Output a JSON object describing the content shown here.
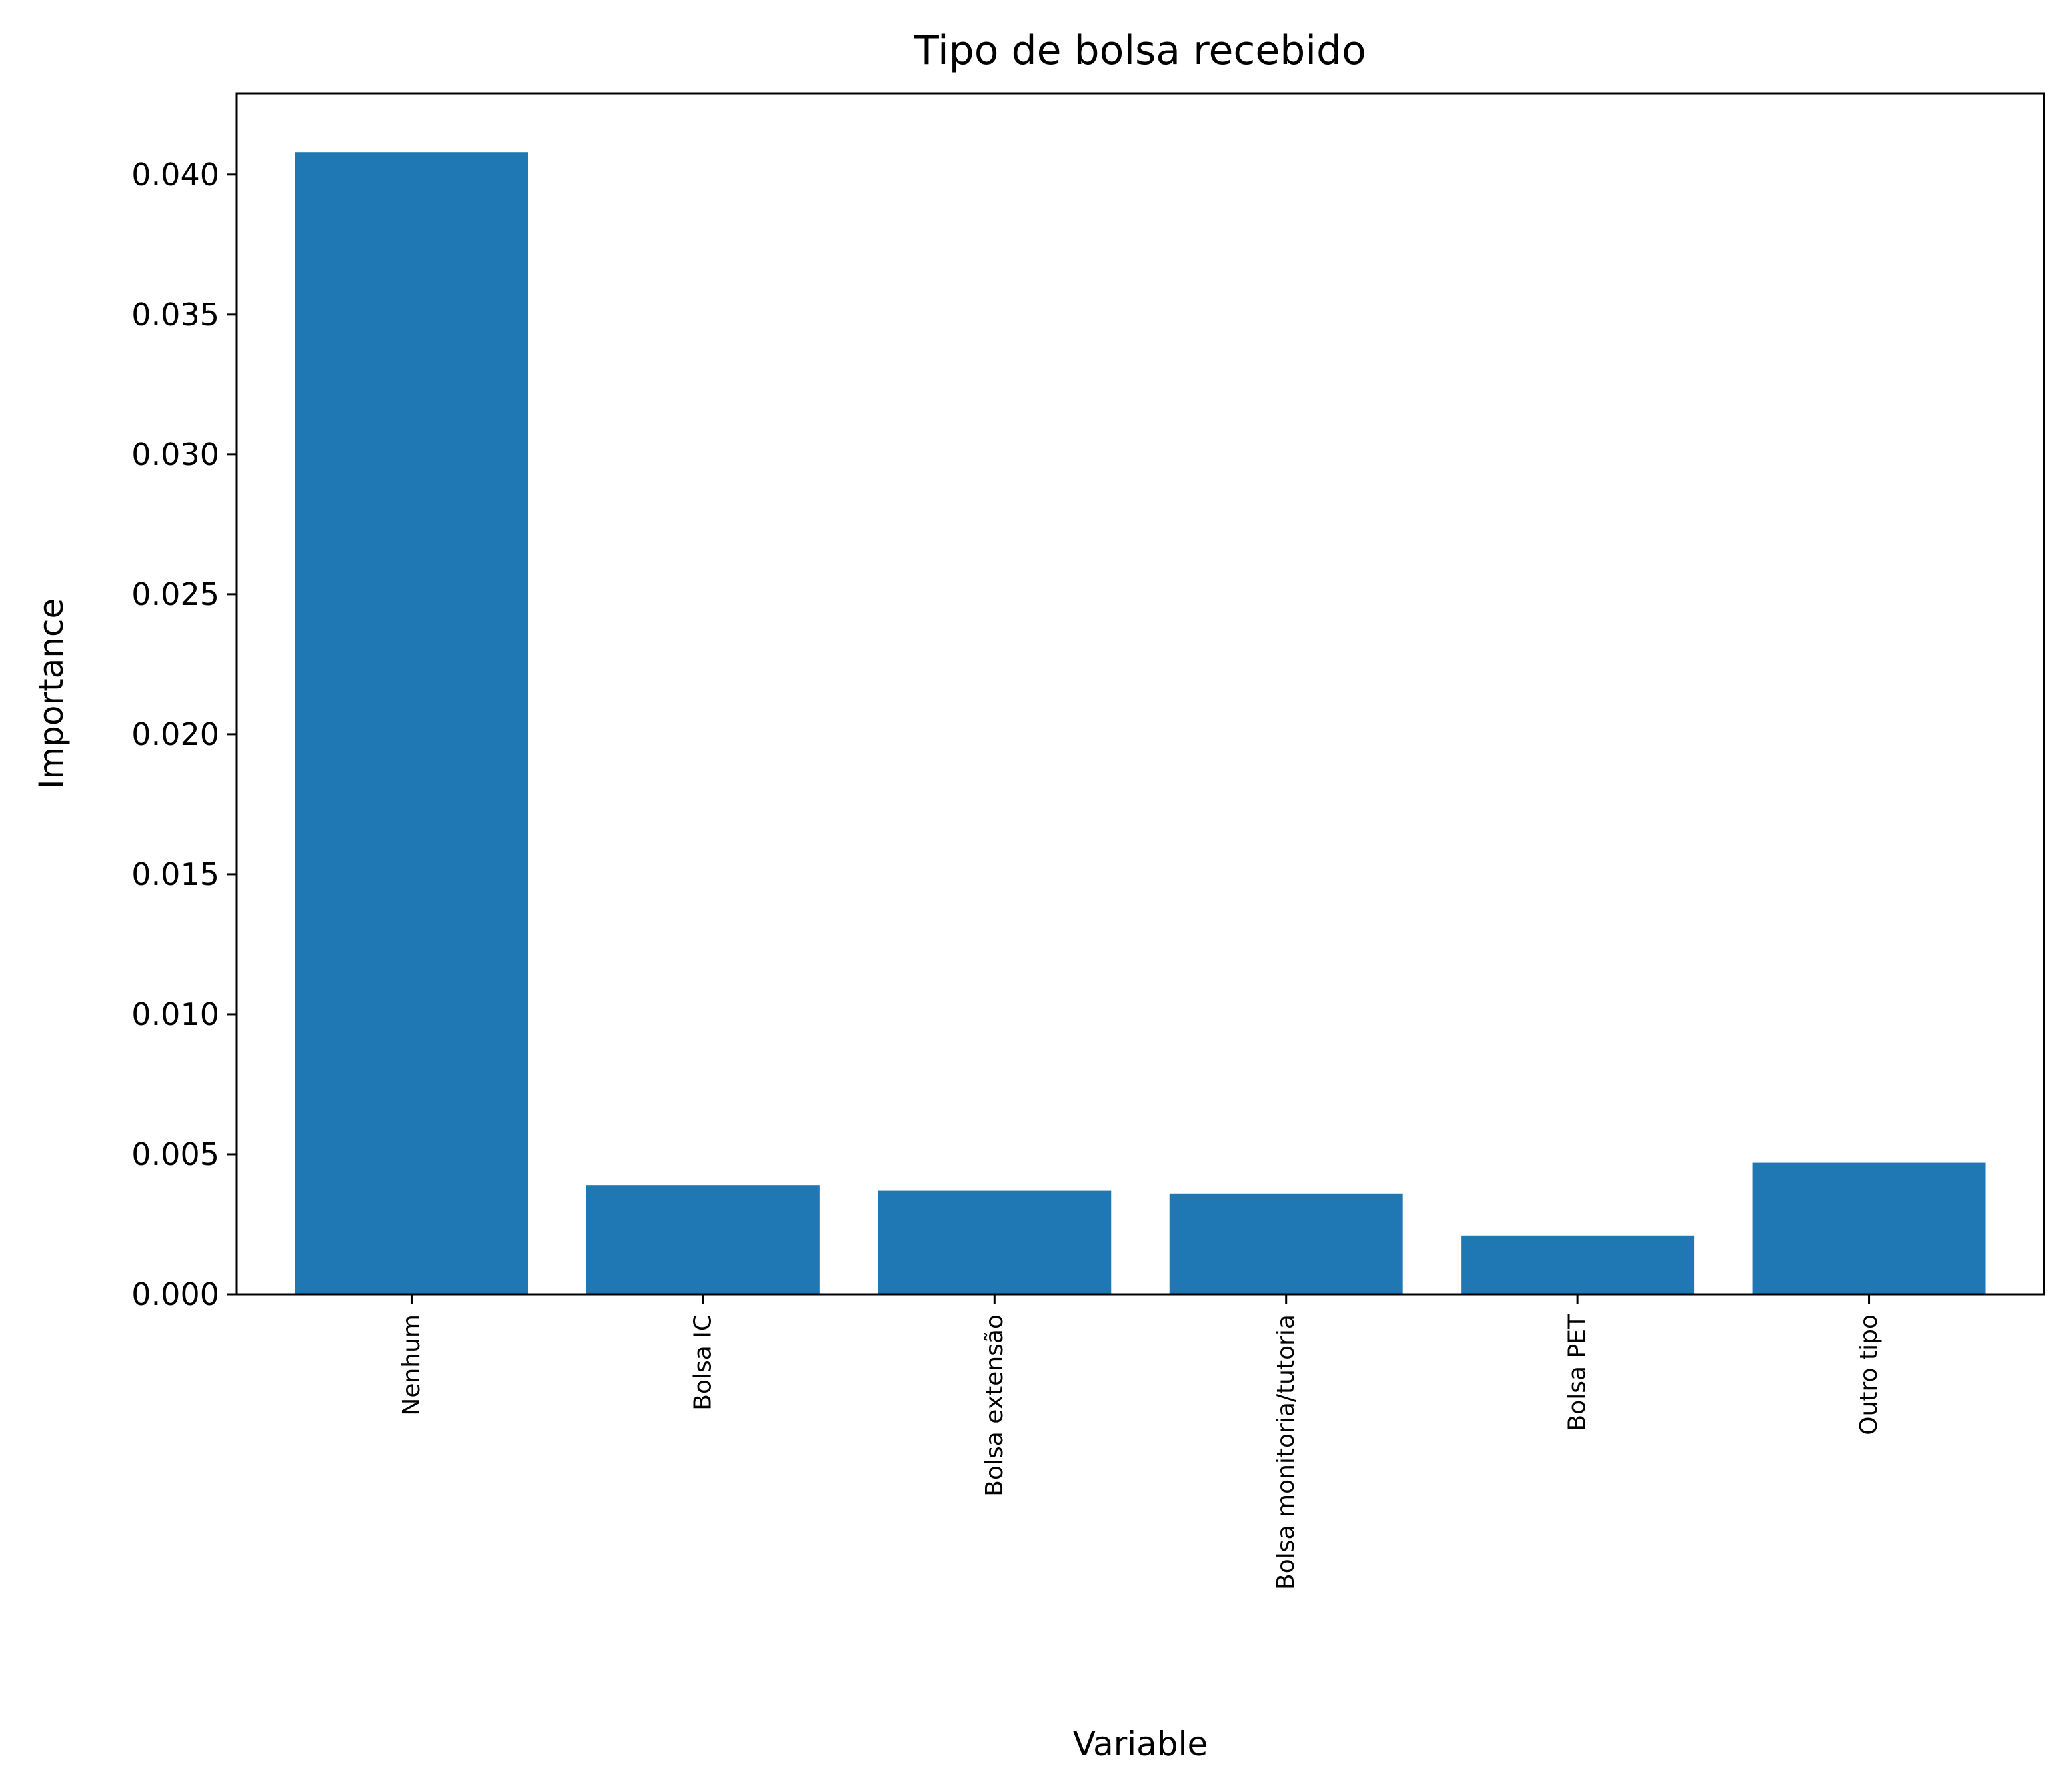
{
  "chart_data": {
    "type": "bar",
    "title": "Tipo de bolsa recebido",
    "xlabel": "Variable",
    "ylabel": "Importance",
    "categories": [
      "Nenhum",
      "Bolsa IC",
      "Bolsa extensão",
      "Bolsa monitoria/tutoria",
      "Bolsa PET",
      "Outro tipo"
    ],
    "values": [
      0.0408,
      0.0039,
      0.0037,
      0.0036,
      0.0021,
      0.0047
    ],
    "ylim": [
      0,
      0.0429
    ],
    "yticks": [
      "0.000",
      "0.005",
      "0.010",
      "0.015",
      "0.020",
      "0.025",
      "0.030",
      "0.035",
      "0.040"
    ],
    "grid": false,
    "bar_color": "#1f77b4"
  }
}
